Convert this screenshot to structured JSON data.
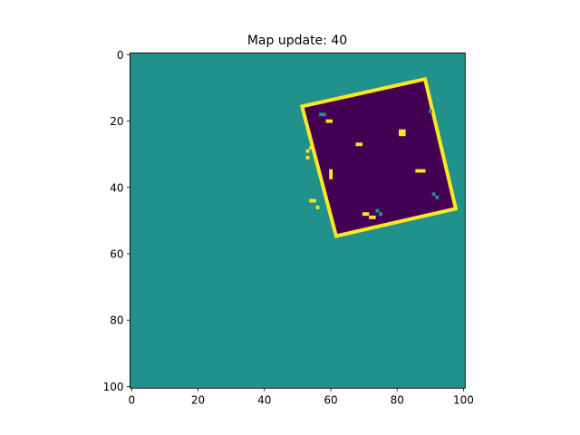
{
  "chart_data": {
    "type": "heatmap",
    "title": "Map update: 40",
    "xlabel": "",
    "ylabel": "",
    "xlim": [
      0,
      101
    ],
    "ylim": [
      101,
      0
    ],
    "x_ticks": [
      0,
      20,
      40,
      60,
      80,
      100
    ],
    "y_ticks": [
      0,
      20,
      40,
      60,
      80,
      100
    ],
    "grid": false,
    "legend": "none",
    "colormap": "viridis",
    "colors": {
      "unknown": "#21918c",
      "free": "#440154",
      "occupied": "#fde725"
    },
    "region": {
      "description_values": "occupancy grid: unknown background, free interior, occupied boundary",
      "corners": [
        [
          52,
          16
        ],
        [
          88,
          8
        ],
        [
          97,
          46
        ],
        [
          62,
          54
        ]
      ]
    },
    "obstacles": [
      [
        68,
        27
      ],
      [
        69,
        27
      ],
      [
        81,
        23
      ],
      [
        82,
        23
      ],
      [
        81,
        24
      ],
      [
        82,
        24
      ],
      [
        60,
        35
      ],
      [
        60,
        36
      ],
      [
        60,
        37
      ],
      [
        86,
        35
      ],
      [
        87,
        35
      ],
      [
        88,
        35
      ],
      [
        53,
        29
      ],
      [
        54,
        28
      ],
      [
        53,
        31
      ],
      [
        54,
        44
      ],
      [
        55,
        44
      ],
      [
        56,
        46
      ],
      [
        70,
        48
      ],
      [
        71,
        48
      ],
      [
        72,
        49
      ],
      [
        73,
        49
      ],
      [
        59,
        20
      ],
      [
        60,
        20
      ]
    ]
  }
}
